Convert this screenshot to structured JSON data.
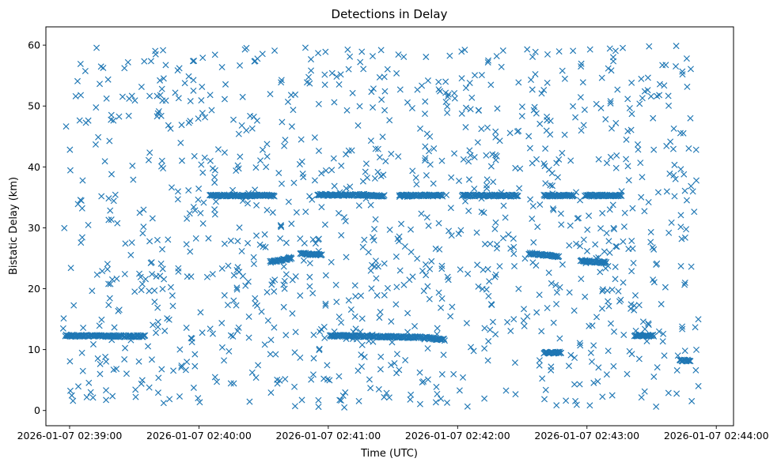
{
  "chart_data": {
    "type": "scatter",
    "title": "Detections in Delay",
    "xlabel": "Time (UTC)",
    "ylabel": "Bistatic Delay (km)",
    "marker": "x",
    "color": "#1f77b4",
    "grid": false,
    "legend": "none",
    "xlim": [
      "2026-01-07 02:38:49",
      "2026-01-07 02:44:08"
    ],
    "ylim": [
      -2.5,
      63
    ],
    "x_ticks": [
      "2026-01-07 02:39:00",
      "2026-01-07 02:40:00",
      "2026-01-07 02:41:00",
      "2026-01-07 02:42:00",
      "2026-01-07 02:43:00",
      "2026-01-07 02:44:00"
    ],
    "y_ticks": [
      0,
      10,
      20,
      30,
      40,
      50,
      60
    ],
    "tracks": [
      {
        "start": "2026-01-07 02:38:58",
        "end": "2026-01-07 02:39:24",
        "delay": 12.3,
        "end_delay": 12.2
      },
      {
        "start": "2026-01-07 02:39:25",
        "end": "2026-01-07 02:39:35",
        "delay": 12.2,
        "end_delay": 12.2
      },
      {
        "start": "2026-01-07 02:41:01",
        "end": "2026-01-07 02:41:43",
        "delay": 12.3,
        "end_delay": 12.0
      },
      {
        "start": "2026-01-07 02:41:44",
        "end": "2026-01-07 02:41:54",
        "delay": 12.0,
        "end_delay": 11.6
      },
      {
        "start": "2026-01-07 02:43:22",
        "end": "2026-01-07 02:43:31",
        "delay": 12.3,
        "end_delay": 12.3
      },
      {
        "start": "2026-01-07 02:43:43",
        "end": "2026-01-07 02:43:48",
        "delay": 8.2,
        "end_delay": 8.2
      },
      {
        "start": "2026-01-07 02:40:05",
        "end": "2026-01-07 02:40:35",
        "delay": 35.3,
        "end_delay": 35.3
      },
      {
        "start": "2026-01-07 02:40:55",
        "end": "2026-01-07 02:41:17",
        "delay": 35.4,
        "end_delay": 35.4
      },
      {
        "start": "2026-01-07 02:41:17",
        "end": "2026-01-07 02:41:26",
        "delay": 35.3,
        "end_delay": 35.3
      },
      {
        "start": "2026-01-07 02:41:33",
        "end": "2026-01-07 02:41:53",
        "delay": 35.3,
        "end_delay": 35.3
      },
      {
        "start": "2026-01-07 02:42:02",
        "end": "2026-01-07 02:42:28",
        "delay": 35.3,
        "end_delay": 35.3
      },
      {
        "start": "2026-01-07 02:42:40",
        "end": "2026-01-07 02:42:54",
        "delay": 35.3,
        "end_delay": 35.3
      },
      {
        "start": "2026-01-07 02:42:59",
        "end": "2026-01-07 02:43:16",
        "delay": 35.3,
        "end_delay": 35.3
      },
      {
        "start": "2026-01-07 02:40:33",
        "end": "2026-01-07 02:40:43",
        "delay": 24.4,
        "end_delay": 25.0
      },
      {
        "start": "2026-01-07 02:40:47",
        "end": "2026-01-07 02:40:57",
        "delay": 25.8,
        "end_delay": 25.5
      },
      {
        "start": "2026-01-07 02:42:33",
        "end": "2026-01-07 02:42:47",
        "delay": 25.8,
        "end_delay": 25.3
      },
      {
        "start": "2026-01-07 02:42:57",
        "end": "2026-01-07 02:43:09",
        "delay": 24.6,
        "end_delay": 24.3
      },
      {
        "start": "2026-01-07 02:42:40",
        "end": "2026-01-07 02:42:48",
        "delay": 9.5,
        "end_delay": 9.5
      }
    ],
    "clutter": {
      "count": 1150,
      "start": "2026-01-07 02:38:56",
      "end": "2026-01-07 02:43:52",
      "min_delay": 0.5,
      "max_delay": 60
    }
  }
}
